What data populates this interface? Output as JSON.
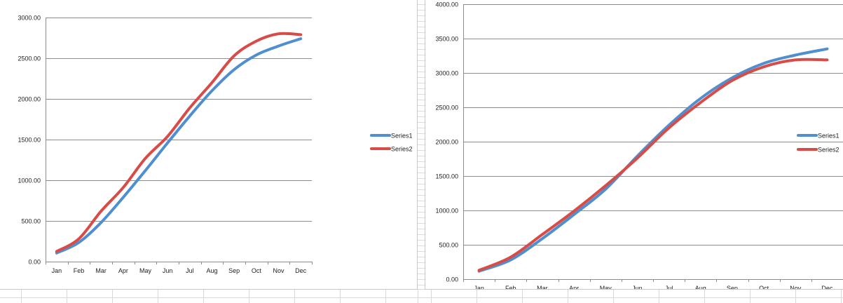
{
  "chart_data": [
    {
      "type": "line",
      "categories": [
        "Jan",
        "Feb",
        "Mar",
        "Apr",
        "May",
        "Jun",
        "Jul",
        "Aug",
        "Sep",
        "Oct",
        "Nov",
        "Dec"
      ],
      "ylim": [
        0,
        3000
      ],
      "ytick_labels": [
        "0.00",
        "500.00",
        "1000.00",
        "1500.00",
        "2000.00",
        "2500.00",
        "3000.00"
      ],
      "grid": true,
      "legend_position": "right",
      "series": [
        {
          "name": "Series1",
          "color": "#4f8fd0",
          "values": [
            105,
            235,
            480,
            790,
            1120,
            1460,
            1790,
            2100,
            2360,
            2540,
            2650,
            2740
          ]
        },
        {
          "name": "Series2",
          "color": "#d84b47",
          "values": [
            125,
            280,
            620,
            910,
            1270,
            1540,
            1890,
            2200,
            2530,
            2710,
            2800,
            2790
          ]
        }
      ]
    },
    {
      "type": "line",
      "categories": [
        "Jan",
        "Feb",
        "Mar",
        "Apr",
        "May",
        "Jun",
        "Jul",
        "Aug",
        "Sep",
        "Oct",
        "Nov",
        "Dec"
      ],
      "ylim": [
        0,
        4000
      ],
      "ytick_labels": [
        "0.00",
        "500.00",
        "1000.00",
        "1500.00",
        "2000.00",
        "2500.00",
        "3000.00",
        "3500.00",
        "4000.00"
      ],
      "grid": true,
      "legend_position": "right",
      "series": [
        {
          "name": "Series1",
          "color": "#4f8fd0",
          "values": [
            115,
            280,
            590,
            940,
            1310,
            1790,
            2240,
            2630,
            2930,
            3140,
            3260,
            3350
          ]
        },
        {
          "name": "Series2",
          "color": "#d84b47",
          "values": [
            130,
            320,
            650,
            990,
            1360,
            1760,
            2200,
            2570,
            2890,
            3090,
            3190,
            3190
          ]
        }
      ]
    }
  ]
}
